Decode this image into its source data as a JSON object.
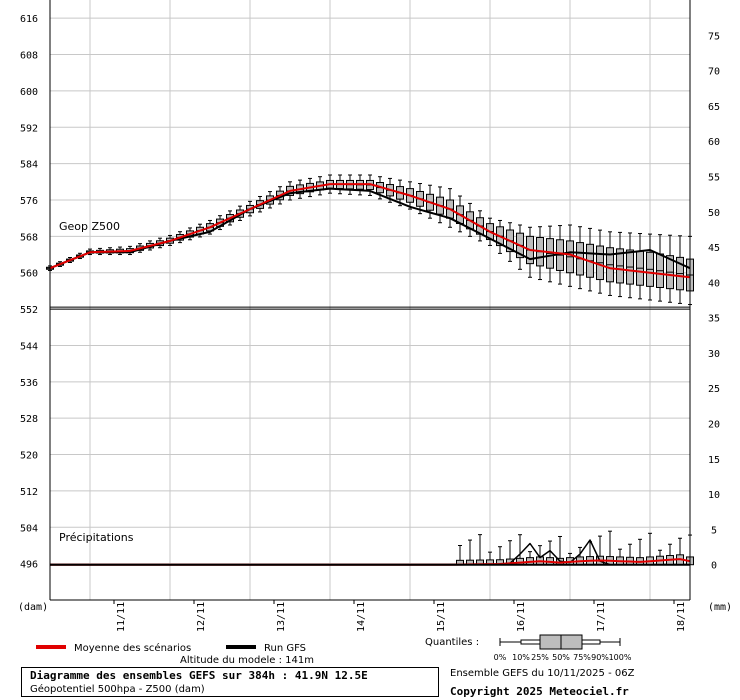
{
  "chart_data": {
    "type": "line",
    "title": "Diagramme des ensembles GEFS sur 384h : 41.9N 12.5E",
    "subtitle": "Géopotentiel 500hpa - Z500 (dam)",
    "left_axis": {
      "unit_label": "(dam)",
      "ticks": [
        616,
        608,
        600,
        592,
        584,
        576,
        568,
        560,
        552,
        544,
        536,
        528,
        520,
        512,
        504,
        496
      ],
      "range": [
        488,
        620
      ]
    },
    "right_axis": {
      "unit_label": "(mm)",
      "ticks": [
        75,
        70,
        65,
        60,
        55,
        50,
        45,
        40,
        35,
        30,
        25,
        20,
        15,
        10,
        5,
        0
      ],
      "range": [
        -5,
        80
      ]
    },
    "x_axis": {
      "unit": "hours",
      "range": [
        0,
        384
      ],
      "day_labels": [
        "11/11",
        "12/11",
        "13/11",
        "14/11",
        "15/11",
        "16/11",
        "17/11",
        "18/11"
      ],
      "day_hours": [
        42,
        90,
        138,
        186,
        234,
        282,
        330,
        378
      ]
    },
    "panel_labels": {
      "geop": "Geop Z500",
      "precip": "Précipitations"
    },
    "geop_series": [
      {
        "name": "Moyenne des scénarios",
        "color": "#e00000",
        "x": [
          0,
          24,
          48,
          72,
          96,
          120,
          144,
          168,
          192,
          216,
          240,
          264,
          288,
          312,
          336,
          360,
          384
        ],
        "values": [
          561.0,
          564.5,
          564.8,
          567.0,
          570.0,
          574.0,
          578.0,
          579.5,
          579.5,
          577.0,
          574.0,
          569.0,
          565.0,
          564.0,
          561.0,
          560.0,
          559.0
        ]
      },
      {
        "name": "Run GFS",
        "color": "#000000",
        "x": [
          0,
          24,
          48,
          72,
          96,
          120,
          144,
          168,
          192,
          216,
          240,
          264,
          288,
          312,
          336,
          360,
          384
        ],
        "values": [
          561.0,
          564.5,
          564.5,
          567.0,
          569.0,
          574.0,
          577.5,
          578.5,
          578.0,
          574.5,
          572.0,
          567.5,
          563.0,
          564.5,
          564.0,
          565.0,
          561.0
        ]
      }
    ],
    "geop_spread": {
      "x": [
        0,
        24,
        48,
        72,
        96,
        120,
        144,
        168,
        192,
        216,
        240,
        264,
        288,
        312,
        336,
        360,
        384
      ],
      "p10": [
        560.5,
        564.0,
        564.0,
        566.0,
        568.5,
        572.5,
        576.0,
        577.5,
        577.0,
        574.0,
        570.0,
        566.0,
        559.0,
        557.0,
        555.0,
        554.0,
        553.0
      ],
      "p25": [
        560.8,
        564.3,
        564.4,
        566.5,
        569.2,
        573.2,
        577.0,
        578.6,
        578.3,
        575.5,
        572.0,
        567.3,
        562.0,
        560.0,
        558.0,
        557.0,
        556.0
      ],
      "p75": [
        561.2,
        564.8,
        565.3,
        567.6,
        570.8,
        574.8,
        579.0,
        580.3,
        580.3,
        578.5,
        576.0,
        570.8,
        568.0,
        567.0,
        565.5,
        564.5,
        563.0
      ],
      "p90": [
        561.5,
        565.2,
        565.8,
        568.2,
        571.5,
        575.7,
        580.0,
        581.5,
        581.5,
        580.0,
        578.5,
        572.0,
        570.0,
        570.5,
        569.0,
        568.5,
        568.0
      ]
    },
    "precip_series": [
      {
        "name": "Moyenne des scénarios",
        "color": "#e00000",
        "x": [
          0,
          120,
          240,
          270,
          282,
          294,
          306,
          318,
          330,
          342,
          354,
          366,
          378,
          384
        ],
        "values": [
          0,
          0,
          0,
          0.1,
          0.3,
          0.5,
          0.3,
          0.5,
          0.6,
          0.5,
          0.4,
          0.6,
          0.8,
          0.5
        ]
      },
      {
        "name": "Run GFS",
        "color": "#000000",
        "x": [
          0,
          240,
          264,
          276,
          282,
          288,
          294,
          300,
          306,
          312,
          318,
          324,
          330,
          336,
          342,
          348,
          384
        ],
        "values": [
          0,
          0,
          0,
          0.2,
          1.5,
          3.0,
          1.0,
          2.0,
          0.5,
          0.3,
          1.5,
          3.5,
          0.5,
          0,
          0,
          0,
          0
        ]
      }
    ],
    "legend": {
      "mean": "Moyenne des scénarios",
      "run": "Run GFS",
      "quantiles": "Quantiles :",
      "quantile_labels": [
        "0%",
        "10%",
        "25%",
        "50%",
        "75%",
        "90%",
        "100%"
      ]
    },
    "altitude": "Altitude du modele : 141m",
    "ensemble": "Ensemble GEFS du 10/11/2025 - 06Z",
    "copyright": "Copyright 2025 Meteociel.fr"
  }
}
